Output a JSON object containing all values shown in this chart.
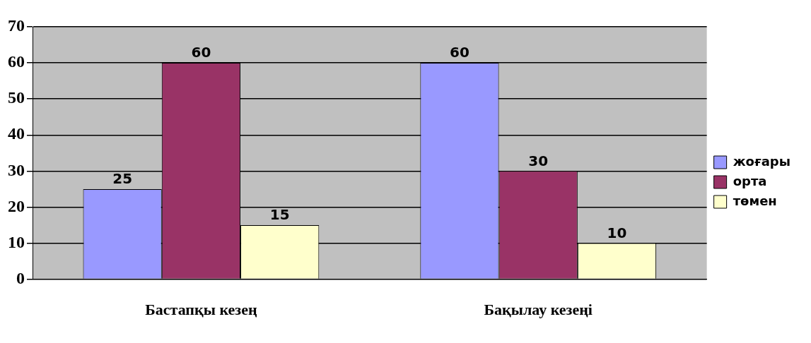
{
  "chart_data": {
    "type": "bar",
    "categories": [
      "Бастапқы кезең",
      "Бақылау кезеңі"
    ],
    "series": [
      {
        "name": "жоғары",
        "color": "#9999ff",
        "values": [
          25,
          60
        ]
      },
      {
        "name": "орта",
        "color": "#993366",
        "values": [
          60,
          30
        ]
      },
      {
        "name": "төмен",
        "color": "#ffffcc",
        "values": [
          15,
          10
        ]
      }
    ],
    "ylim": [
      0,
      70
    ],
    "yticks": [
      0,
      10,
      20,
      30,
      40,
      50,
      60,
      70
    ],
    "grid": "y",
    "legend": "right",
    "data_labels": true
  }
}
